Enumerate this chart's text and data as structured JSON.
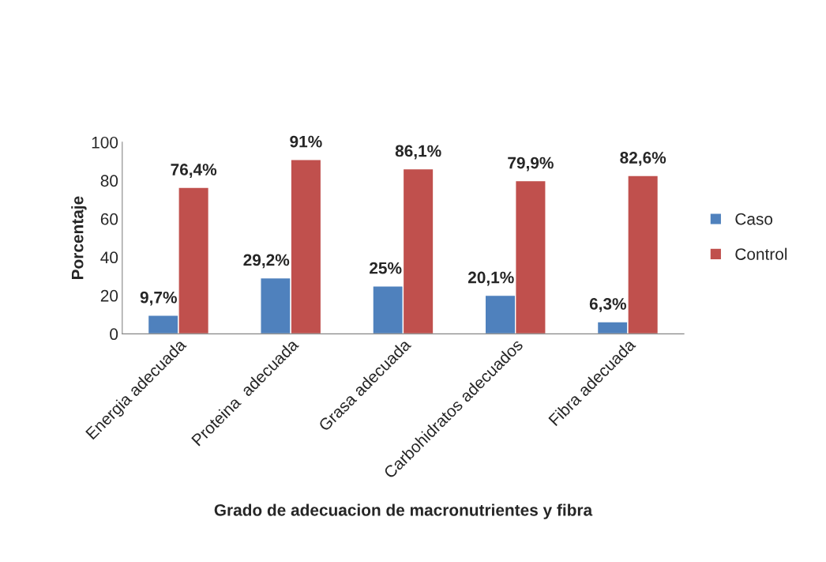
{
  "chart_data": {
    "type": "bar",
    "xlabel": "Grado de adecuacion de macronutrientes y fibra",
    "ylabel": "Porcentaje",
    "categories": [
      "Energia adecuada",
      "Proteina  adecuada",
      "Grasa adecuada",
      "Carbohidratos adecuados",
      "Fibra adecuada"
    ],
    "series": [
      {
        "name": "Caso",
        "color": "#4f81bd",
        "values": [
          9.7,
          29.2,
          25,
          20.1,
          6.3
        ],
        "value_labels": [
          "9,7%",
          "29,2%",
          "25%",
          "20,1%",
          "6,3%"
        ]
      },
      {
        "name": "Control",
        "color": "#c0504d",
        "values": [
          76.4,
          91,
          86.1,
          79.9,
          82.6
        ],
        "value_labels": [
          "76,4%",
          "91%",
          "86,1%",
          "79,9%",
          "82,6%"
        ]
      }
    ],
    "ylim": [
      0,
      100
    ],
    "yticks": [
      0,
      20,
      40,
      60,
      80,
      100
    ],
    "grid": false,
    "legend": "right"
  }
}
